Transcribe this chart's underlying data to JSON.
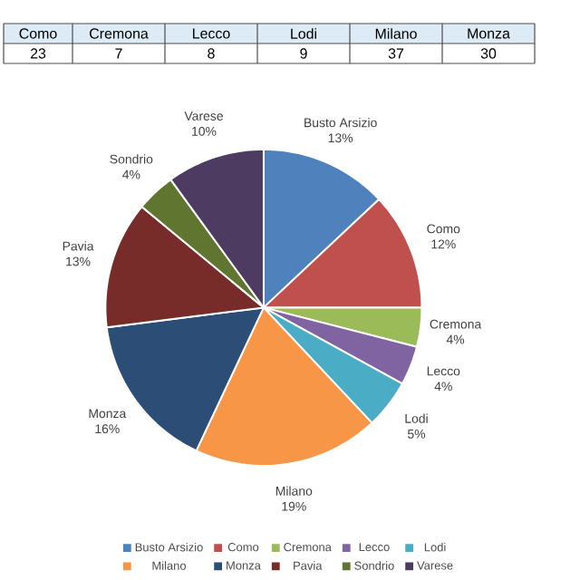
{
  "chart_data": {
    "type": "pie",
    "categories": [
      "Busto Arsizio",
      "Como",
      "Cremona",
      "Lecco",
      "Lodi",
      "Milano",
      "Monza",
      "Pavia",
      "Sondrio",
      "Varese"
    ],
    "values": [
      13,
      12,
      4,
      4,
      5,
      19,
      16,
      13,
      4,
      10
    ],
    "value_labels": [
      "13%",
      "12%",
      "4%",
      "4%",
      "5%",
      "19%",
      "16%",
      "13%",
      "4%",
      "10%"
    ],
    "colors": [
      "#4f81bd",
      "#c0504d",
      "#9bbb59",
      "#8064a2",
      "#4bacc6",
      "#f79646",
      "#2c4d75",
      "#772c2a",
      "#5f7530",
      "#4d3b62"
    ],
    "annotations": [
      "23",
      "7",
      "8",
      "9",
      "37",
      "30"
    ],
    "legend": "bottom"
  }
}
